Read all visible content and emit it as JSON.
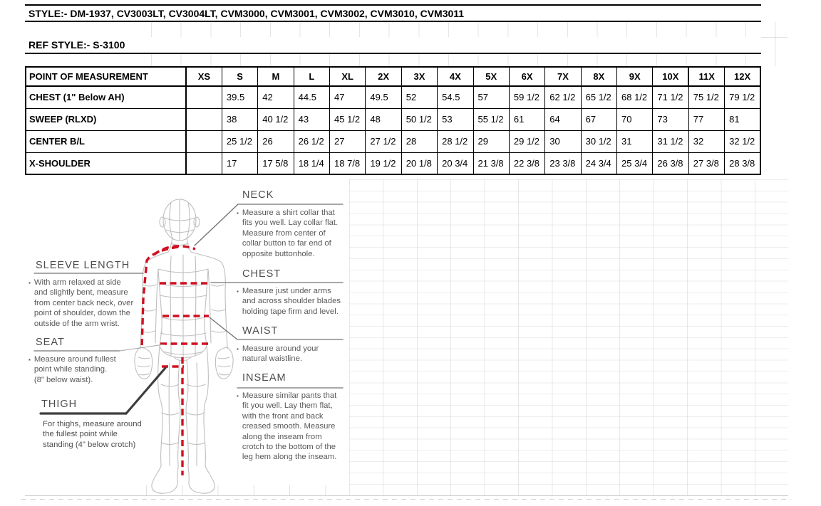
{
  "meta": {
    "style_line": "STYLE:- DM-1937, CV3003LT, CV3004LT, CVM3000, CVM3001, CVM3002, CVM3010, CVM3011",
    "ref_style_line": "REF STYLE:- S-3100"
  },
  "size_table": {
    "header": [
      "POINT OF MEASUREMENT",
      "XS",
      "S",
      "M",
      "L",
      "XL",
      "2X",
      "3X",
      "4X",
      "5X",
      "6X",
      "7X",
      "8X",
      "9X",
      "10X",
      "11X",
      "12X"
    ],
    "rows": [
      {
        "label": "CHEST (1\" Below AH)",
        "values": [
          "",
          "39.5",
          "42",
          "44.5",
          "47",
          "49.5",
          "52",
          "54.5",
          "57",
          "59 1/2",
          "62 1/2",
          "65 1/2",
          "68 1/2",
          "71 1/2",
          "75 1/2",
          "79 1/2"
        ]
      },
      {
        "label": "SWEEP (RLXD)",
        "values": [
          "",
          "38",
          "40 1/2",
          "43",
          "45 1/2",
          "48",
          "50 1/2",
          "53",
          "55 1/2",
          "61",
          "64",
          "67",
          "70",
          "73",
          "77",
          "81"
        ]
      },
      {
        "label": "CENTER B/L",
        "values": [
          "",
          "25 1/2",
          "26",
          "26 1/2",
          "27",
          "27 1/2",
          "28",
          "28 1/2",
          "29",
          "29 1/2",
          "30",
          "30 1/2",
          "31",
          "31 1/2",
          "32",
          "32 1/2"
        ]
      },
      {
        "label": "X-SHOULDER",
        "values": [
          "",
          "17",
          "17 5/8",
          "18 1/4",
          "18 7/8",
          "19 1/2",
          "20 1/8",
          "20 3/4",
          "21 3/8",
          "22 3/8",
          "23 3/8",
          "24 3/4",
          "25 3/4",
          "26 3/8",
          "27 3/8",
          "28 3/8"
        ]
      }
    ]
  },
  "guide": {
    "neck": {
      "title": "NECK",
      "desc": "Measure a shirt collar that\nfits you well. Lay collar flat.\nMeasure from center of\ncollar button to far end of\nopposite buttonhole."
    },
    "chest": {
      "title": "CHEST",
      "desc": "Measure just under arms\nand across shoulder blades\nholding tape firm and level."
    },
    "waist": {
      "title": "WAIST",
      "desc": "Measure around your\nnatural waistline."
    },
    "inseam": {
      "title": "INSEAM",
      "desc": "Measure similar pants that\nfit you well. Lay them flat,\nwith the front and back\ncreased smooth. Measure\nalong the inseam from\ncrotch to the bottom of the\nleg hem along the inseam."
    },
    "sleeve_length": {
      "title": "SLEEVE LENGTH",
      "desc": "With arm relaxed at side\nand slightly bent, measure\nfrom center back neck, over\npoint of shoulder, down the\noutside of the arm wrist."
    },
    "seat": {
      "title": "SEAT",
      "desc": "Measure around fullest\npoint while standing.\n(8\" below waist)."
    },
    "thigh": {
      "title": "THIGH",
      "desc": "For thighs, measure around\nthe fullest point while\nstanding (4\" below crotch)"
    }
  },
  "icons": {
    "bullet": "▪"
  },
  "colors": {
    "measure_red": "#cf1020",
    "wireframe_gray": "#bfbfbf",
    "leader_gray": "#8c8c8c",
    "thick_line": "#3d3d3d"
  }
}
